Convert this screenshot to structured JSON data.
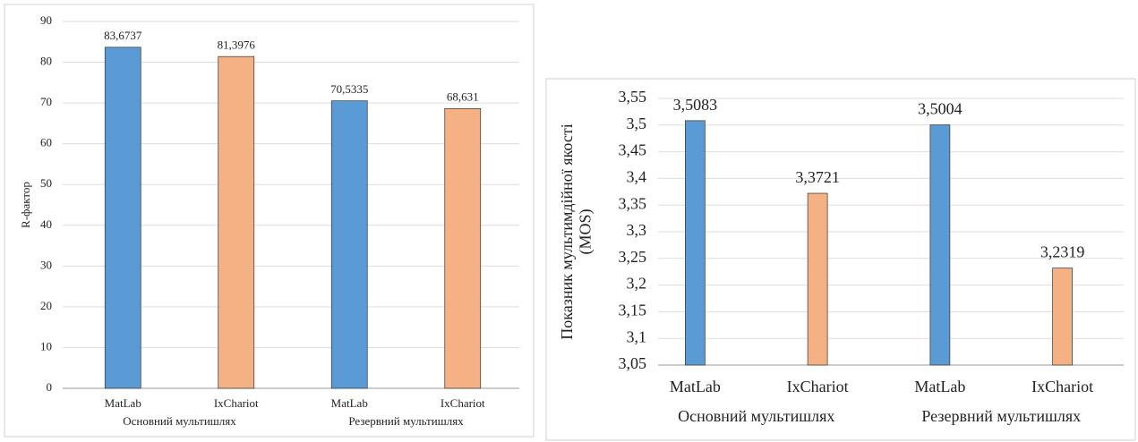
{
  "chart_data": [
    {
      "type": "bar",
      "y_label": "R-фактор",
      "categories": [
        "MatLab",
        "IxChariot",
        "MatLab",
        "IxChariot"
      ],
      "groups": [
        "Основний мультишлях",
        "Резервний мультишлях"
      ],
      "values": [
        83.6737,
        81.3976,
        70.5335,
        68.631
      ],
      "value_labels": [
        "83,6737",
        "81,3976",
        "70,5335",
        "68,631"
      ],
      "colors": [
        "#5b9bd5",
        "#f4b183",
        "#5b9bd5",
        "#f4b183"
      ],
      "ylim": [
        0,
        90
      ],
      "yticks": [
        0,
        10,
        20,
        30,
        40,
        50,
        60,
        70,
        80,
        90
      ],
      "grid": true
    },
    {
      "type": "bar",
      "y_label": [
        "Показник мультимдійної якості",
        "(MOS)"
      ],
      "categories": [
        "MatLab",
        "IxChariot",
        "MatLab",
        "IxChariot"
      ],
      "groups": [
        "Основний мультишлях",
        "Резервний мультишлях"
      ],
      "values": [
        3.5083,
        3.3721,
        3.5004,
        3.2319
      ],
      "value_labels": [
        "3,5083",
        "3,3721",
        "3,5004",
        "3,2319"
      ],
      "colors": [
        "#5b9bd5",
        "#f4b183",
        "#5b9bd5",
        "#f4b183"
      ],
      "ylim": [
        3.05,
        3.55
      ],
      "yticks": [
        {
          "value": 3.05,
          "label": "3,05"
        },
        {
          "value": 3.1,
          "label": "3,1"
        },
        {
          "value": 3.15,
          "label": "3,15"
        },
        {
          "value": 3.2,
          "label": "3,2"
        },
        {
          "value": 3.25,
          "label": "3,25"
        },
        {
          "value": 3.3,
          "label": "3,3"
        },
        {
          "value": 3.35,
          "label": "3,35"
        },
        {
          "value": 3.4,
          "label": "3,4"
        },
        {
          "value": 3.45,
          "label": "3,45"
        },
        {
          "value": 3.5,
          "label": "3,5"
        },
        {
          "value": 3.55,
          "label": "3,55"
        }
      ],
      "grid": true
    }
  ]
}
